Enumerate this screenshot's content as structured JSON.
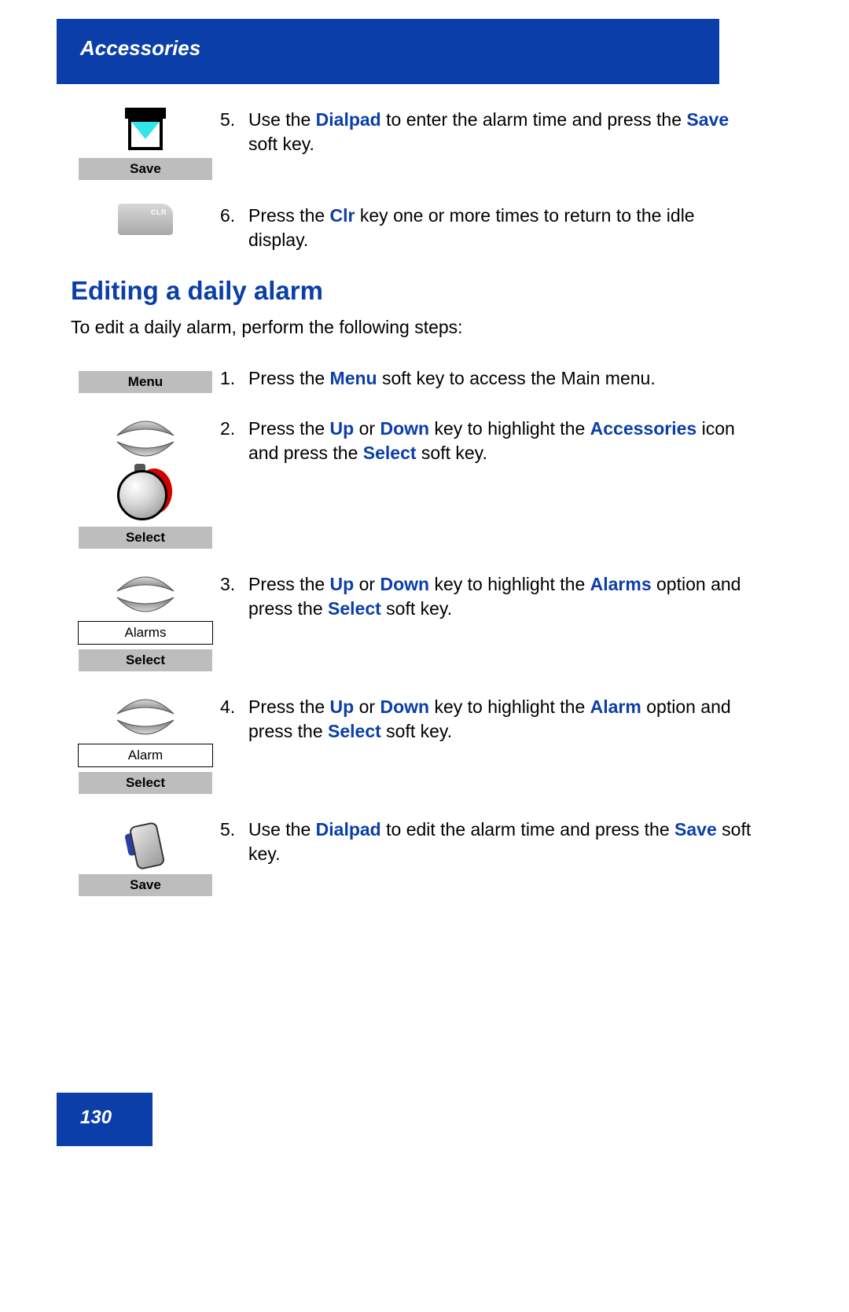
{
  "colors": {
    "brand_blue": "#0b3ea8",
    "softkey_bg": "#bdbdbd",
    "page_bg": "#ffffff",
    "text": "#000000"
  },
  "header": {
    "title": "Accessories"
  },
  "top_steps": [
    {
      "num": "5.",
      "parts": [
        {
          "t": "Use the "
        },
        {
          "t": "Dialpad",
          "b": true
        },
        {
          "t": " to enter the alarm time and press the "
        },
        {
          "t": "Save",
          "b": true
        },
        {
          "t": " soft key."
        }
      ],
      "softkey": "Save",
      "icon": "mailbox"
    },
    {
      "num": "6.",
      "parts": [
        {
          "t": "Press the "
        },
        {
          "t": "Clr",
          "b": true
        },
        {
          "t": " key one or more times to return to the idle display."
        }
      ],
      "softkey": null,
      "icon": "clr"
    }
  ],
  "section": {
    "title": "Editing a daily alarm",
    "intro": "To edit a daily alarm, perform the following steps:"
  },
  "steps": [
    {
      "num": "1.",
      "parts": [
        {
          "t": "Press the "
        },
        {
          "t": "Menu",
          "b": true
        },
        {
          "t": " soft key to access the Main menu."
        }
      ],
      "icon": null,
      "listbox": null,
      "softkey": "Menu",
      "softkey_pos": "top"
    },
    {
      "num": "2.",
      "parts": [
        {
          "t": "Press the "
        },
        {
          "t": "Up",
          "b": true
        },
        {
          "t": " or "
        },
        {
          "t": "Down",
          "b": true
        },
        {
          "t": " key to highlight the "
        },
        {
          "t": "Accessories",
          "b": true
        },
        {
          "t": " icon and press the "
        },
        {
          "t": "Select",
          "b": true
        },
        {
          "t": " soft key."
        }
      ],
      "icon": "nav+stopwatch",
      "listbox": null,
      "softkey": "Select",
      "softkey_pos": "bottom"
    },
    {
      "num": "3.",
      "parts": [
        {
          "t": "Press the "
        },
        {
          "t": "Up",
          "b": true
        },
        {
          "t": " or "
        },
        {
          "t": "Down",
          "b": true
        },
        {
          "t": " key to highlight the "
        },
        {
          "t": "Alarms",
          "b": true
        },
        {
          "t": " option and press the "
        },
        {
          "t": "Select",
          "b": true
        },
        {
          "t": " soft key."
        }
      ],
      "icon": "nav",
      "listbox": "Alarms",
      "softkey": "Select",
      "softkey_pos": "bottom"
    },
    {
      "num": "4.",
      "parts": [
        {
          "t": "Press the "
        },
        {
          "t": "Up",
          "b": true
        },
        {
          "t": " or "
        },
        {
          "t": "Down",
          "b": true
        },
        {
          "t": " key to highlight the "
        },
        {
          "t": "Alarm",
          "b": true
        },
        {
          "t": " option and press the "
        },
        {
          "t": "Select",
          "b": true
        },
        {
          "t": " soft key."
        }
      ],
      "icon": "nav",
      "listbox": "Alarm",
      "softkey": "Select",
      "softkey_pos": "bottom"
    },
    {
      "num": "5.",
      "parts": [
        {
          "t": "Use the "
        },
        {
          "t": "Dialpad",
          "b": true
        },
        {
          "t": " to edit the alarm time and press the "
        },
        {
          "t": "Save",
          "b": true
        },
        {
          "t": " soft key."
        }
      ],
      "icon": "phone",
      "listbox": null,
      "softkey": "Save",
      "softkey_pos": "bottom"
    }
  ],
  "footer": {
    "page": "130"
  }
}
